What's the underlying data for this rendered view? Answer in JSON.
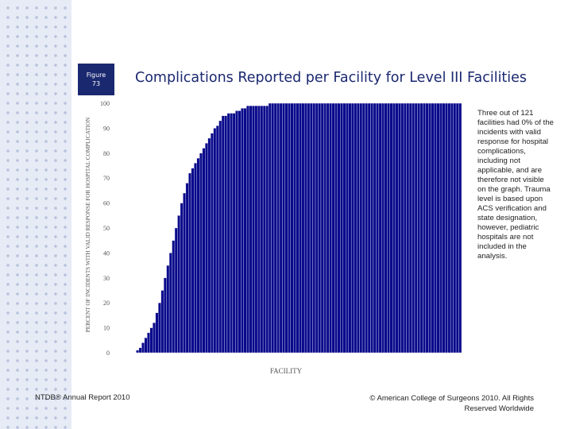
{
  "figure": {
    "label": "Figure",
    "number": "73"
  },
  "title": "Complications Reported per Facility for Level III Facilities",
  "note": "Three out of 121 facilities had 0% of the incidents with valid response for hospital complications, including not applicable, and are therefore not visible on the graph. Trauma level is based upon ACS verification and state designation, however, pediatric hospitals are not included in the analysis.",
  "footer": {
    "left": "NTDB® Annual Report 2010",
    "right": "© American College of Surgeons 2010. All Rights Reserved Worldwide"
  },
  "colors": {
    "bar": "#0a0a8c",
    "badge": "#1a2870",
    "title": "#1a2870"
  },
  "chart_data": {
    "type": "bar",
    "xlabel": "FACILITY",
    "ylabel": "PERCENT OF INCIDENTS WITH VALID RESPONSE FOR HOSPITAL COMPLICATION",
    "ylim": [
      0,
      100
    ],
    "yticks": [
      0,
      10,
      20,
      30,
      40,
      50,
      60,
      70,
      80,
      90,
      100
    ],
    "grid": false,
    "legend": "none",
    "values": [
      0,
      0,
      0,
      1,
      2,
      4,
      6,
      8,
      10,
      12,
      16,
      20,
      25,
      30,
      35,
      40,
      45,
      50,
      55,
      60,
      64,
      68,
      72,
      74,
      76,
      78,
      80,
      82,
      84,
      86,
      88,
      90,
      91,
      93,
      95,
      95,
      96,
      96,
      96,
      97,
      97,
      98,
      98,
      99,
      99,
      99,
      99,
      99,
      99,
      99,
      99,
      100,
      100,
      100,
      100,
      100,
      100,
      100,
      100,
      100,
      100,
      100,
      100,
      100,
      100,
      100,
      100,
      100,
      100,
      100,
      100,
      100,
      100,
      100,
      100,
      100,
      100,
      100,
      100,
      100,
      100,
      100,
      100,
      100,
      100,
      100,
      100,
      100,
      100,
      100,
      100,
      100,
      100,
      100,
      100,
      100,
      100,
      100,
      100,
      100,
      100,
      100,
      100,
      100,
      100,
      100,
      100,
      100,
      100,
      100,
      100,
      100,
      100,
      100,
      100,
      100,
      100,
      100,
      100,
      100,
      100
    ]
  }
}
